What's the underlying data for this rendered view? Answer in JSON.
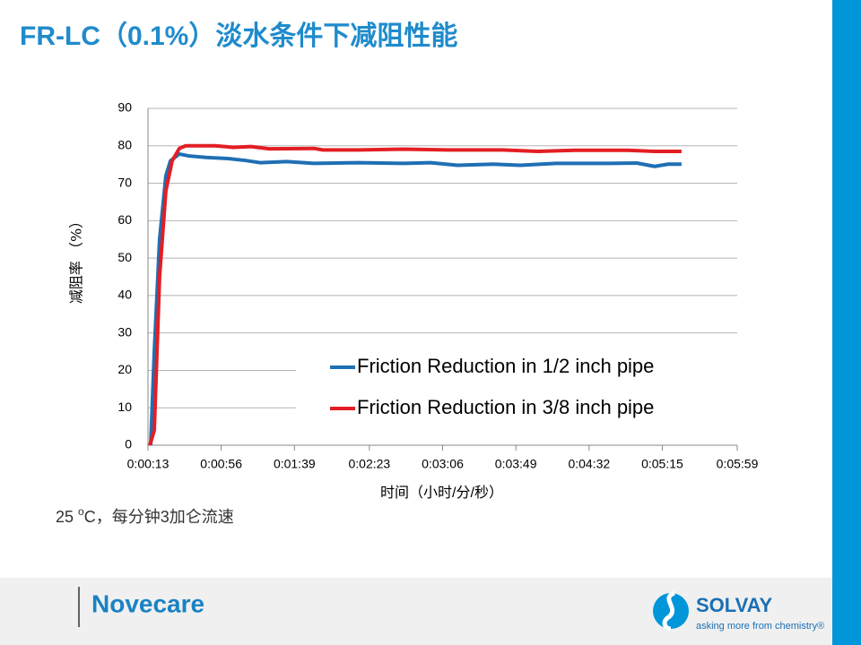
{
  "header": {
    "title": "FR-LC（0.1%）淡水条件下减阻性能"
  },
  "chart_data": {
    "type": "line",
    "y_label": "减阻率 （%）",
    "x_label": "时间（小时/分/秒）",
    "xlim": [
      13,
      359
    ],
    "xticks": [
      {
        "value": 13,
        "label": "0:00:13"
      },
      {
        "value": 56,
        "label": "0:00:56"
      },
      {
        "value": 99,
        "label": "0:01:39"
      },
      {
        "value": 143,
        "label": "0:02:23"
      },
      {
        "value": 186,
        "label": "0:03:06"
      },
      {
        "value": 229,
        "label": "0:03:49"
      },
      {
        "value": 272,
        "label": "0:04:32"
      },
      {
        "value": 315,
        "label": "0:05:15"
      },
      {
        "value": 359,
        "label": "0:05:59"
      }
    ],
    "ylim": [
      0,
      90
    ],
    "yticks": [
      0,
      10,
      20,
      30,
      40,
      50,
      60,
      70,
      80,
      90
    ],
    "grid": true,
    "legend": "lower right",
    "series": [
      {
        "name": "Friction Reduction in 1/2 inch pipe",
        "color": "#1f6fb4",
        "x": [
          14.6,
          16.7,
          19.8,
          23.5,
          26.2,
          31.4,
          37,
          47.2,
          60,
          70,
          78.8,
          94.6,
          110.4,
          136.7,
          163.1,
          178.9,
          194.7,
          215.7,
          231.5,
          252.6,
          284.2,
          300,
          310.5,
          318.4,
          326.3
        ],
        "values": [
          0,
          25,
          55,
          72,
          76,
          77.8,
          77.3,
          76.9,
          76.6,
          76.1,
          75.5,
          75.8,
          75.3,
          75.5,
          75.3,
          75.5,
          74.8,
          75.1,
          74.8,
          75.3,
          75.3,
          75.4,
          74.5,
          75.1,
          75.1
        ]
      },
      {
        "name": "Friction Reduction in 3/8 inch pipe",
        "color": "#e31e24",
        "x": [
          14.1,
          16.7,
          19.8,
          23.5,
          27.2,
          31.4,
          35.1,
          52.5,
          63,
          73.6,
          84.1,
          110.4,
          115.7,
          136.7,
          163.1,
          189.4,
          221,
          242,
          263,
          294.7,
          310.5,
          326.3
        ],
        "values": [
          0,
          4,
          45,
          68,
          76,
          79.3,
          80,
          80,
          79.6,
          79.8,
          79.2,
          79.3,
          78.9,
          78.9,
          79.1,
          78.9,
          78.9,
          78.5,
          78.8,
          78.8,
          78.5,
          78.5
        ]
      }
    ]
  },
  "note": [
    "25 ",
    "o",
    "C，每分钟3加仑流速"
  ],
  "footer": {
    "brand": "Novecare",
    "logo": "SOLVAY",
    "tagline": "asking more from chemistry®"
  }
}
